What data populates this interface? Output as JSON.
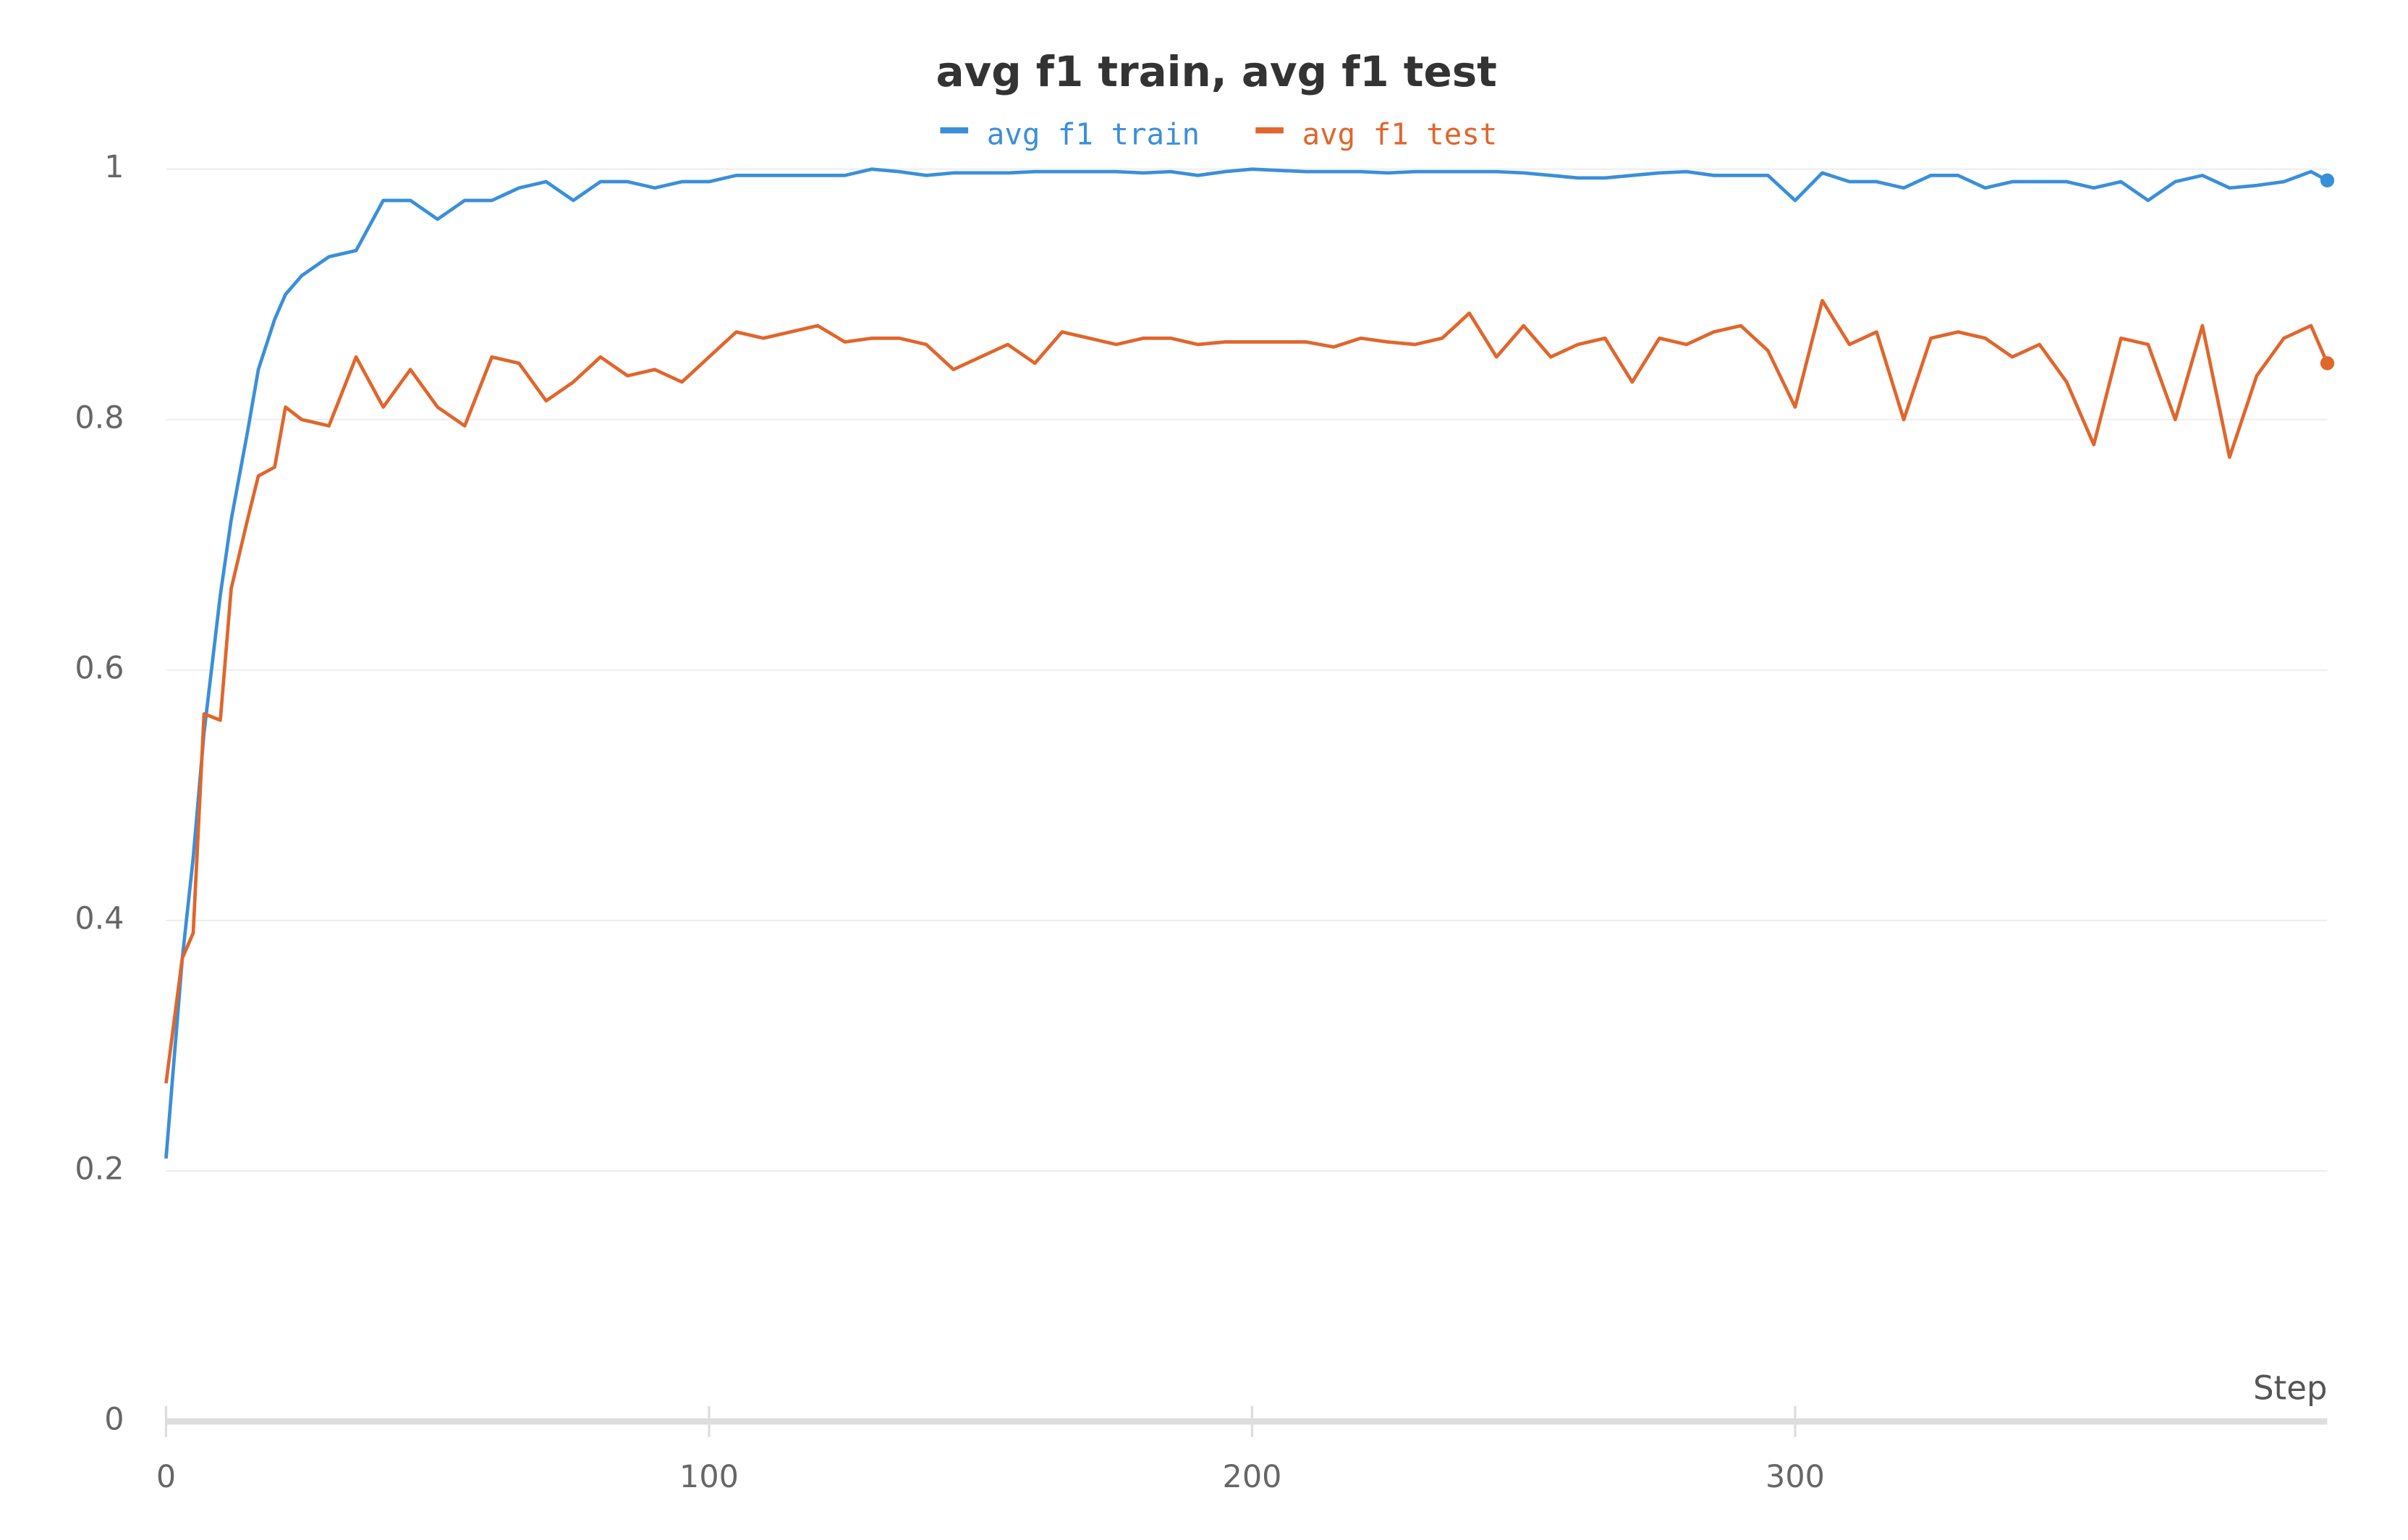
{
  "chart_data": {
    "type": "line",
    "title": "avg f1 train, avg f1 test",
    "x_label": "Step",
    "x": [
      0,
      3,
      5,
      7,
      10,
      12,
      15,
      17,
      20,
      22,
      25,
      30,
      35,
      40,
      45,
      50,
      55,
      60,
      65,
      70,
      75,
      80,
      85,
      90,
      95,
      100,
      105,
      110,
      115,
      120,
      125,
      130,
      135,
      140,
      145,
      150,
      155,
      160,
      165,
      170,
      175,
      180,
      185,
      190,
      195,
      200,
      205,
      210,
      215,
      220,
      225,
      230,
      235,
      240,
      245,
      250,
      255,
      260,
      265,
      270,
      275,
      280,
      285,
      290,
      295,
      300,
      305,
      310,
      315,
      320,
      325,
      330,
      335,
      340,
      345,
      350,
      355,
      360,
      365,
      370,
      375,
      380,
      385,
      390,
      395,
      398
    ],
    "series": [
      {
        "name": "avg f1 train",
        "color": "#3a8fd9",
        "values": [
          0.21,
          0.37,
          0.45,
          0.55,
          0.66,
          0.72,
          0.79,
          0.84,
          0.88,
          0.9,
          0.915,
          0.93,
          0.935,
          0.975,
          0.975,
          0.96,
          0.975,
          0.975,
          0.985,
          0.99,
          0.975,
          0.99,
          0.99,
          0.985,
          0.99,
          0.99,
          0.995,
          0.995,
          0.995,
          0.995,
          0.995,
          1.0,
          0.998,
          0.995,
          0.997,
          0.997,
          0.997,
          0.998,
          0.998,
          0.998,
          0.998,
          0.997,
          0.998,
          0.995,
          0.998,
          1.0,
          0.999,
          0.998,
          0.998,
          0.998,
          0.997,
          0.998,
          0.998,
          0.998,
          0.998,
          0.997,
          0.995,
          0.993,
          0.993,
          0.995,
          0.997,
          0.998,
          0.995,
          0.995,
          0.995,
          0.975,
          0.997,
          0.99,
          0.99,
          0.985,
          0.995,
          0.995,
          0.985,
          0.99,
          0.99,
          0.99,
          0.985,
          0.99,
          0.975,
          0.99,
          0.995,
          0.985,
          0.987,
          0.99,
          0.998,
          0.991
        ]
      },
      {
        "name": "avg f1 test",
        "color": "#e0662c",
        "values": [
          0.27,
          0.37,
          0.39,
          0.565,
          0.56,
          0.665,
          0.72,
          0.755,
          0.762,
          0.81,
          0.8,
          0.795,
          0.85,
          0.81,
          0.84,
          0.81,
          0.795,
          0.85,
          0.845,
          0.815,
          0.83,
          0.85,
          0.835,
          0.84,
          0.83,
          0.85,
          0.87,
          0.865,
          0.87,
          0.875,
          0.862,
          0.865,
          0.865,
          0.86,
          0.84,
          0.85,
          0.86,
          0.845,
          0.87,
          0.865,
          0.86,
          0.865,
          0.865,
          0.86,
          0.862,
          0.862,
          0.862,
          0.862,
          0.858,
          0.865,
          0.862,
          0.86,
          0.865,
          0.885,
          0.85,
          0.875,
          0.85,
          0.86,
          0.865,
          0.83,
          0.865,
          0.86,
          0.87,
          0.875,
          0.855,
          0.81,
          0.895,
          0.86,
          0.87,
          0.8,
          0.865,
          0.87,
          0.865,
          0.85,
          0.86,
          0.83,
          0.78,
          0.865,
          0.86,
          0.8,
          0.875,
          0.77,
          0.835,
          0.865,
          0.875,
          0.845
        ]
      }
    ],
    "xlim": [
      0,
      398
    ],
    "xticks": [
      0,
      100,
      200,
      300
    ],
    "ylim": [
      0,
      1
    ],
    "yticks": [
      0,
      0.2,
      0.4,
      0.6,
      0.8,
      1
    ],
    "grid": true
  }
}
